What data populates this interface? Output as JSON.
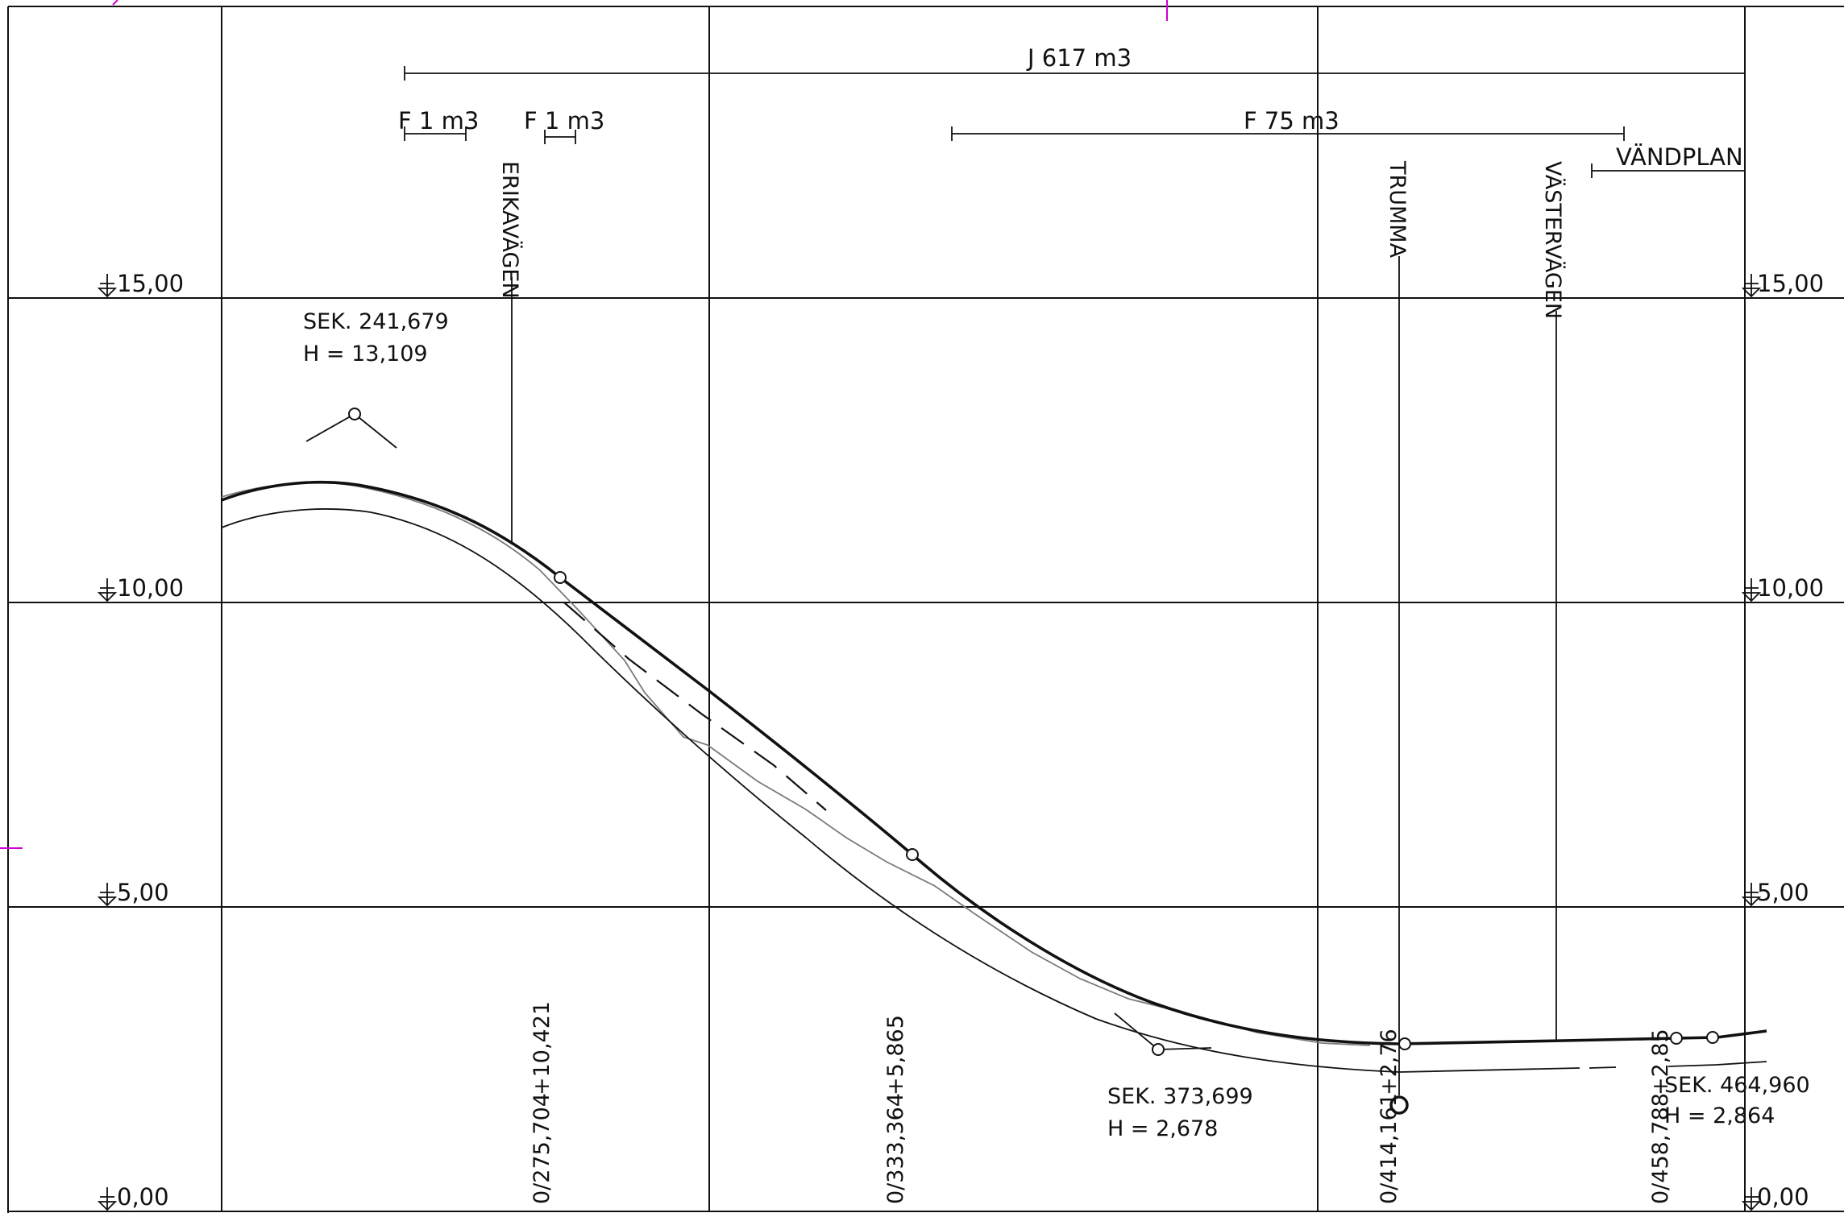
{
  "elevation_labels": [
    "15,00",
    "10,00",
    "5,00",
    "0,00"
  ],
  "top_annotations": {
    "cut_volume": "J 617 m3",
    "fill_volume_1": "F 1 m3",
    "fill_volume_2": "F 1 m3",
    "fill_volume_3": "F 75 m3",
    "turnaround": "VÄNDPLAN"
  },
  "road_labels": {
    "erikavagen": "ERIKAVÄGEN",
    "trumma": "TRUMMA",
    "vastervagen": "VÄSTERVÄGEN"
  },
  "sections": {
    "high_point": {
      "sek": "SEK. 241,679",
      "h": "H = 13,109"
    },
    "low_point": {
      "sek": "SEK. 373,699",
      "h": "H = 2,678"
    },
    "end_point": {
      "sek": "SEK. 464,960",
      "h": "H = 2,864"
    }
  },
  "stations": [
    {
      "chainage": "0/275,704",
      "level": "+10,421"
    },
    {
      "chainage": "0/333,364",
      "level": "+5,865"
    },
    {
      "chainage": "0/414,161",
      "level": "+2,76"
    },
    {
      "chainage": "0/458,788",
      "level": "+2,85"
    }
  ]
}
